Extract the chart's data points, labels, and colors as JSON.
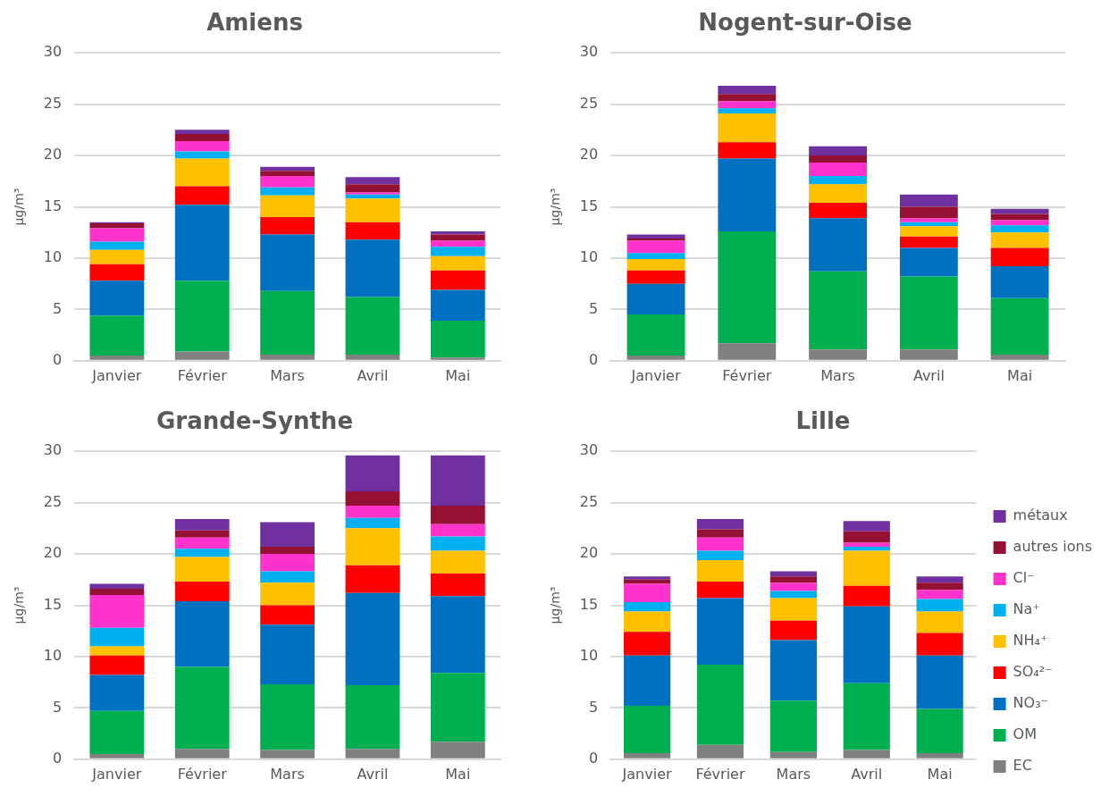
{
  "chart_data": [
    {
      "type": "bar",
      "title": "Amiens",
      "ylabel": "µg/m³",
      "stacked": true,
      "categories": [
        "Janvier",
        "Février",
        "Mars",
        "Avril",
        "Mai"
      ],
      "ylim": [
        0,
        30
      ],
      "yticks": [
        0,
        5,
        10,
        15,
        20,
        25,
        30
      ],
      "grid": "y",
      "legend": false,
      "series": [
        {
          "color": "#808080",
          "values": [
            0.5,
            0.9,
            0.6,
            0.6,
            0.3
          ]
        },
        {
          "color": "#00b050",
          "values": [
            3.9,
            6.9,
            6.2,
            5.6,
            3.6
          ]
        },
        {
          "color": "#0070c0",
          "values": [
            3.4,
            7.4,
            5.5,
            5.6,
            3.0
          ]
        },
        {
          "color": "#ff0000",
          "values": [
            1.6,
            1.8,
            1.7,
            1.7,
            1.9
          ]
        },
        {
          "color": "#ffc000",
          "values": [
            1.4,
            2.7,
            2.1,
            2.3,
            1.4
          ]
        },
        {
          "color": "#00b0f0",
          "values": [
            0.8,
            0.7,
            0.8,
            0.4,
            0.9
          ]
        },
        {
          "color": "#ff33cc",
          "values": [
            1.3,
            1.0,
            1.1,
            0.2,
            0.6
          ]
        },
        {
          "color": "#941133",
          "values": [
            0.5,
            0.7,
            0.5,
            0.8,
            0.6
          ]
        },
        {
          "color": "#7030a0",
          "values": [
            0.1,
            0.4,
            0.4,
            0.7,
            0.3
          ]
        }
      ]
    },
    {
      "type": "bar",
      "title": "Nogent-sur-Oise",
      "ylabel": "µg/m³",
      "stacked": true,
      "categories": [
        "Janvier",
        "Février",
        "Mars",
        "Avril",
        "Mai"
      ],
      "ylim": [
        0,
        30
      ],
      "yticks": [
        0,
        5,
        10,
        15,
        20,
        25,
        30
      ],
      "grid": "y",
      "legend": false,
      "series": [
        {
          "color": "#808080",
          "values": [
            0.5,
            1.7,
            1.1,
            1.1,
            0.6
          ]
        },
        {
          "color": "#00b050",
          "values": [
            4.0,
            10.9,
            7.6,
            7.1,
            5.5
          ]
        },
        {
          "color": "#0070c0",
          "values": [
            3.0,
            7.1,
            5.2,
            2.8,
            3.1
          ]
        },
        {
          "color": "#ff0000",
          "values": [
            1.3,
            1.6,
            1.5,
            1.1,
            1.8
          ]
        },
        {
          "color": "#ffc000",
          "values": [
            1.1,
            2.8,
            1.8,
            1.0,
            1.5
          ]
        },
        {
          "color": "#00b0f0",
          "values": [
            0.6,
            0.5,
            0.8,
            0.4,
            0.7
          ]
        },
        {
          "color": "#ff33cc",
          "values": [
            1.2,
            0.7,
            1.3,
            0.4,
            0.5
          ]
        },
        {
          "color": "#941133",
          "values": [
            0.2,
            0.7,
            0.7,
            1.1,
            0.6
          ]
        },
        {
          "color": "#7030a0",
          "values": [
            0.4,
            0.8,
            0.9,
            1.2,
            0.5
          ]
        }
      ]
    },
    {
      "type": "bar",
      "title": "Grande-Synthe",
      "ylabel": "µg/m³",
      "stacked": true,
      "categories": [
        "Janvier",
        "Février",
        "Mars",
        "Avril",
        "Mai"
      ],
      "ylim": [
        0,
        30
      ],
      "yticks": [
        0,
        5,
        10,
        15,
        20,
        25,
        30
      ],
      "grid": "y",
      "legend": false,
      "series": [
        {
          "color": "#808080",
          "values": [
            0.5,
            1.0,
            0.9,
            1.0,
            1.7
          ]
        },
        {
          "color": "#00b050",
          "values": [
            4.2,
            8.0,
            6.4,
            6.2,
            6.7
          ]
        },
        {
          "color": "#0070c0",
          "values": [
            3.5,
            6.4,
            5.8,
            9.0,
            7.5
          ]
        },
        {
          "color": "#ff0000",
          "values": [
            1.9,
            1.9,
            1.9,
            2.7,
            2.2
          ]
        },
        {
          "color": "#ffc000",
          "values": [
            0.9,
            2.4,
            2.2,
            3.6,
            2.2
          ]
        },
        {
          "color": "#00b0f0",
          "values": [
            1.8,
            0.8,
            1.1,
            1.0,
            1.4
          ]
        },
        {
          "color": "#ff33cc",
          "values": [
            3.2,
            1.1,
            1.7,
            1.2,
            1.2
          ]
        },
        {
          "color": "#941133",
          "values": [
            0.6,
            0.7,
            0.7,
            1.4,
            1.8
          ]
        },
        {
          "color": "#7030a0",
          "values": [
            0.5,
            1.1,
            2.4,
            3.5,
            4.9
          ]
        }
      ]
    },
    {
      "type": "bar",
      "title": "Lille",
      "ylabel": "µg/m³",
      "stacked": true,
      "categories": [
        "Janvier",
        "Février",
        "Mars",
        "Avril",
        "Mai"
      ],
      "ylim": [
        0,
        30
      ],
      "yticks": [
        0,
        5,
        10,
        15,
        20,
        25,
        30
      ],
      "grid": "y",
      "legend": "right",
      "series": [
        {
          "name": "EC",
          "color": "#808080",
          "values": [
            0.6,
            1.4,
            0.7,
            0.9,
            0.6
          ]
        },
        {
          "name": "OM",
          "color": "#00b050",
          "values": [
            4.6,
            7.8,
            5.0,
            6.5,
            4.3
          ]
        },
        {
          "name": "NO₃⁻",
          "color": "#0070c0",
          "values": [
            4.9,
            6.5,
            5.9,
            7.5,
            5.2
          ]
        },
        {
          "name": "SO₄²⁻",
          "color": "#ff0000",
          "values": [
            2.3,
            1.6,
            1.9,
            2.0,
            2.2
          ]
        },
        {
          "name": "NH₄⁺",
          "color": "#ffc000",
          "values": [
            2.0,
            2.1,
            2.2,
            3.4,
            2.1
          ]
        },
        {
          "name": "Na⁺",
          "color": "#00b0f0",
          "values": [
            0.9,
            0.9,
            0.7,
            0.4,
            1.2
          ]
        },
        {
          "name": "Cl⁻",
          "color": "#ff33cc",
          "values": [
            1.8,
            1.3,
            0.8,
            0.4,
            0.9
          ]
        },
        {
          "name": "autres ions",
          "color": "#941133",
          "values": [
            0.4,
            0.8,
            0.6,
            1.1,
            0.7
          ]
        },
        {
          "name": "métaux",
          "color": "#7030a0",
          "values": [
            0.3,
            1.0,
            0.5,
            1.0,
            0.6
          ]
        }
      ]
    }
  ]
}
